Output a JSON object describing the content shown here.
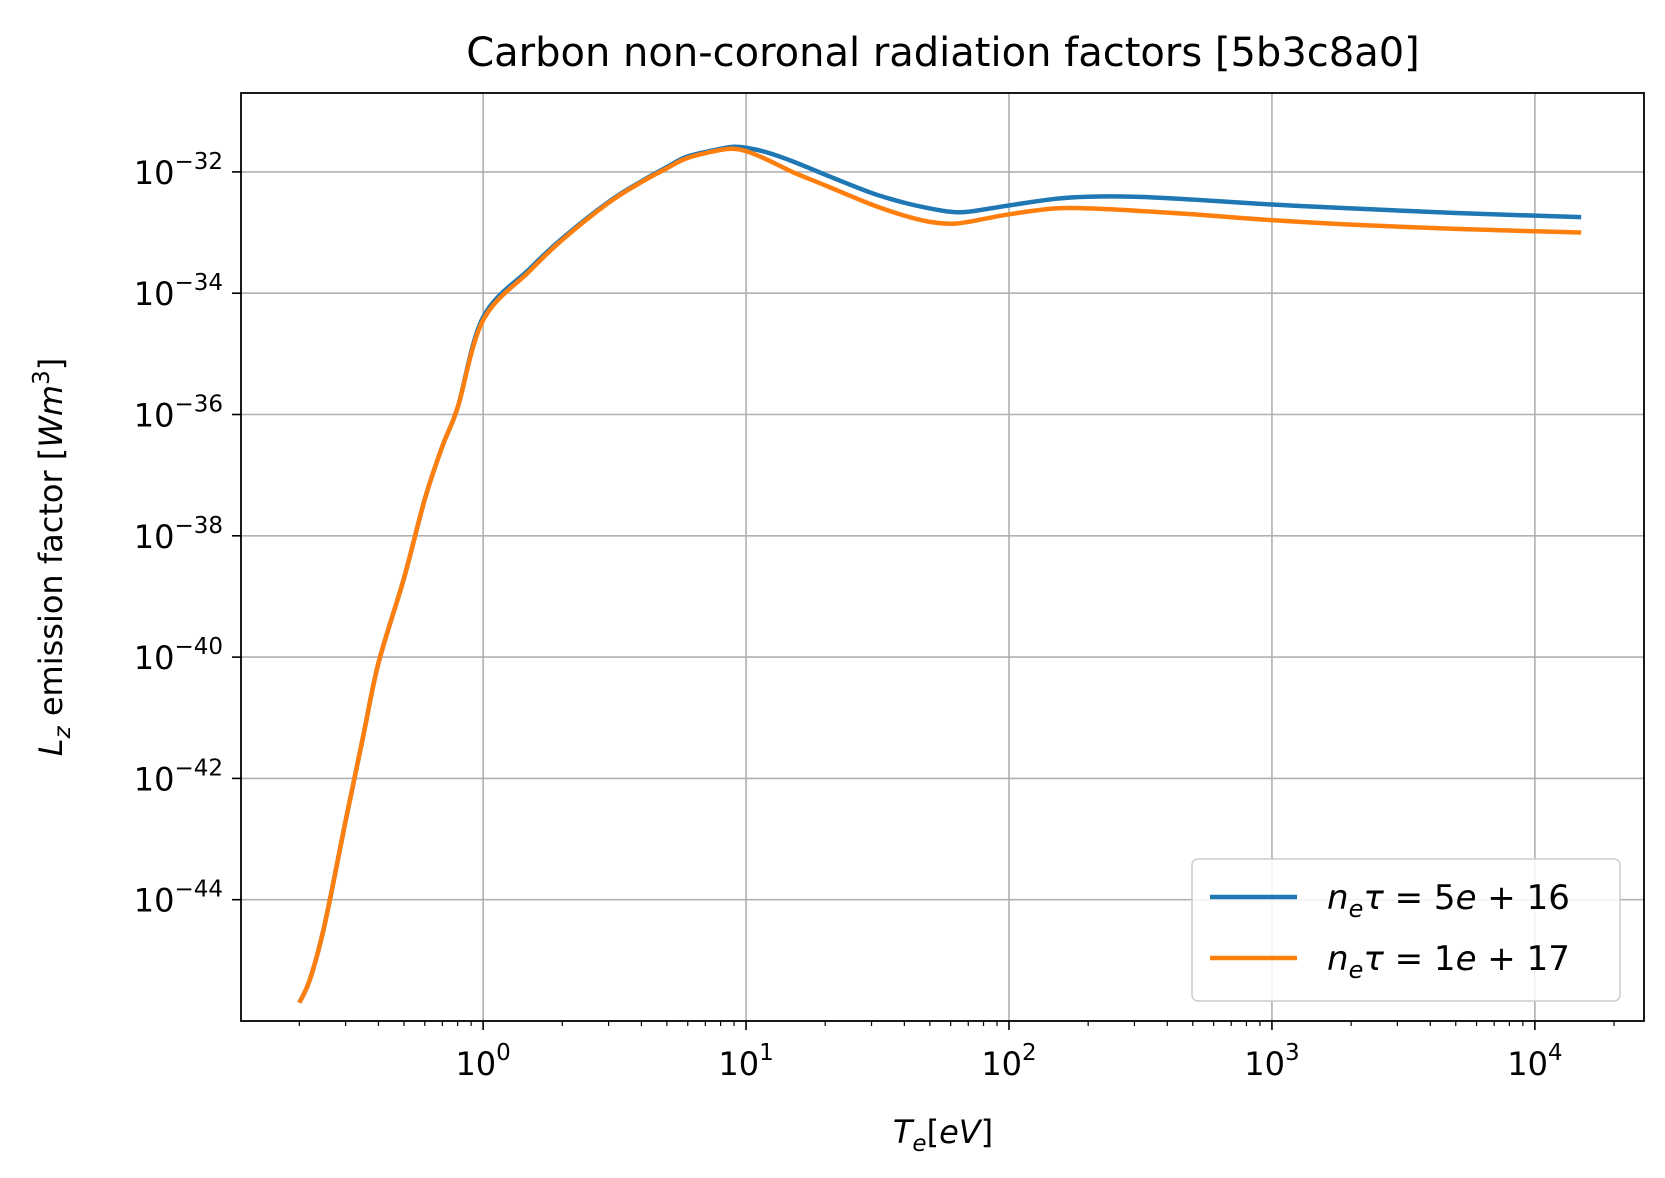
{
  "chart_data": {
    "type": "line",
    "title": "Carbon non-coronal radiation factors [5b3c8a0]",
    "xlabel": "T_e[eV]",
    "ylabel": "L_z emission factor [Wm^3]",
    "xscale": "log",
    "yscale": "log",
    "xlim": [
      0.12,
      26000
    ],
    "ylim": [
      1e-46,
      2e-31
    ],
    "grid": true,
    "legend_position": "lower right",
    "x_ticks": [
      {
        "value": 1,
        "base": "10",
        "exp": "0"
      },
      {
        "value": 10,
        "base": "10",
        "exp": "1"
      },
      {
        "value": 100,
        "base": "10",
        "exp": "2"
      },
      {
        "value": 1000,
        "base": "10",
        "exp": "3"
      },
      {
        "value": 10000,
        "base": "10",
        "exp": "4"
      }
    ],
    "y_ticks": [
      {
        "value": 1e-32,
        "base": "10",
        "exp": "−32"
      },
      {
        "value": 1e-34,
        "base": "10",
        "exp": "−34"
      },
      {
        "value": 1e-36,
        "base": "10",
        "exp": "−36"
      },
      {
        "value": 1e-38,
        "base": "10",
        "exp": "−38"
      },
      {
        "value": 1e-40,
        "base": "10",
        "exp": "−40"
      },
      {
        "value": 1e-42,
        "base": "10",
        "exp": "−42"
      },
      {
        "value": 1e-44,
        "base": "10",
        "exp": "−44"
      }
    ],
    "series": [
      {
        "name": "n_e τ = 5e + 16",
        "color": "#1f77b4",
        "x": [
          0.2,
          0.22,
          0.25,
          0.3,
          0.35,
          0.4,
          0.5,
          0.6,
          0.7,
          0.8,
          1.0,
          1.5,
          2,
          3,
          4,
          5,
          6,
          8,
          9,
          10,
          12,
          15,
          20,
          30,
          40,
          50,
          60,
          70,
          100,
          150,
          200,
          300,
          500,
          1000,
          2000,
          5000,
          10000,
          15000
        ],
        "y": [
          2e-46,
          5e-46,
          4e-45,
          2e-43,
          5e-42,
          8e-41,
          2e-39,
          4e-38,
          3e-37,
          1.3e-36,
          4e-35,
          2.5e-34,
          8e-34,
          3.2e-33,
          7e-33,
          1.2e-32,
          1.8e-32,
          2.4e-32,
          2.6e-32,
          2.5e-32,
          2.1e-32,
          1.5e-32,
          9e-33,
          4.5e-33,
          3.1e-33,
          2.5e-33,
          2.2e-33,
          2.2e-33,
          2.8e-33,
          3.6e-33,
          3.9e-33,
          3.9e-33,
          3.5e-33,
          2.9e-33,
          2.5e-33,
          2.1e-33,
          1.9e-33,
          1.8e-33
        ]
      },
      {
        "name": "n_e τ = 1e + 17",
        "color": "#ff7f0e",
        "x": [
          0.2,
          0.22,
          0.25,
          0.3,
          0.35,
          0.4,
          0.5,
          0.6,
          0.7,
          0.8,
          1.0,
          1.5,
          2,
          3,
          4,
          5,
          6,
          8,
          9,
          10,
          12,
          15,
          20,
          30,
          40,
          50,
          60,
          70,
          100,
          150,
          200,
          300,
          500,
          1000,
          2000,
          5000,
          10000,
          15000
        ],
        "y": [
          2e-46,
          5e-46,
          4e-45,
          2e-43,
          5e-42,
          8e-41,
          2e-39,
          4e-38,
          3e-37,
          1.3e-36,
          3.6e-35,
          2.3e-34,
          7.6e-34,
          3.1e-33,
          6.8e-33,
          1.15e-32,
          1.7e-32,
          2.3e-32,
          2.4e-32,
          2.2e-32,
          1.6e-32,
          1e-32,
          6e-33,
          2.9e-33,
          1.9e-33,
          1.5e-33,
          1.4e-33,
          1.5e-33,
          2e-33,
          2.5e-33,
          2.5e-33,
          2.3e-33,
          2e-33,
          1.6e-33,
          1.35e-33,
          1.15e-33,
          1.05e-33,
          1e-33
        ]
      }
    ]
  }
}
